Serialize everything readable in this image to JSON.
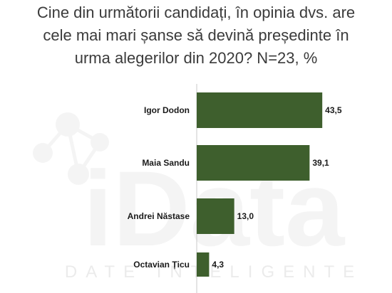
{
  "title_lines": [
    "Cine din următorii candidați, în opinia dvs. are",
    "cele mai mari șanse să devină președinte în",
    "urma alegerilor din 2020? N=23, %"
  ],
  "watermark": {
    "brand": "iData",
    "tagline": "DATE INTELIGENTE"
  },
  "colors": {
    "bar": "#3e5f2d",
    "axis": "#c9c9c9"
  },
  "chart_data": {
    "type": "bar",
    "orientation": "horizontal",
    "title": "Cine din următorii candidați, în opinia dvs. are cele mai mari șanse să devină președinte în urma alegerilor din 2020? N=23, %",
    "categories": [
      "Igor Dodon",
      "Maia Sandu",
      "Andrei Năstase",
      "Octavian Țicu"
    ],
    "values": [
      43.5,
      39.1,
      13.0,
      4.3
    ],
    "value_labels": [
      "43,5",
      "39,1",
      "13,0",
      "4,3"
    ],
    "xlim": [
      0,
      50
    ],
    "grid": false,
    "legend": "none"
  }
}
